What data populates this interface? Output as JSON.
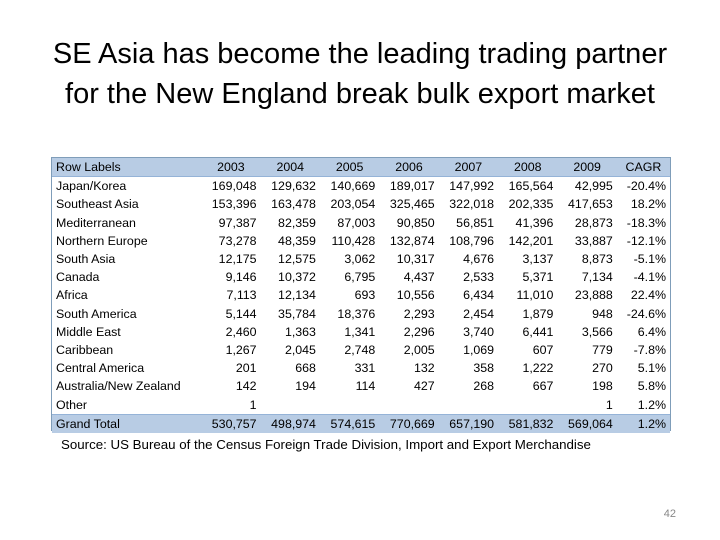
{
  "slide": {
    "title_line1": "SE Asia has become the leading trading partner",
    "title_line2": "for the New England break bulk export market",
    "source": "Source: US Bureau of the Census Foreign Trade Division, Import and Export Merchandise",
    "page_number": "42"
  },
  "table": {
    "headers": [
      "Row Labels",
      "2003",
      "2004",
      "2005",
      "2006",
      "2007",
      "2008",
      "2009",
      "CAGR"
    ],
    "rows": [
      [
        "Japan/Korea",
        "169,048",
        "129,632",
        "140,669",
        "189,017",
        "147,992",
        "165,564",
        "42,995",
        "-20.4%"
      ],
      [
        "Southeast Asia",
        "153,396",
        "163,478",
        "203,054",
        "325,465",
        "322,018",
        "202,335",
        "417,653",
        "18.2%"
      ],
      [
        "Mediterranean",
        "97,387",
        "82,359",
        "87,003",
        "90,850",
        "56,851",
        "41,396",
        "28,873",
        "-18.3%"
      ],
      [
        "Northern Europe",
        "73,278",
        "48,359",
        "110,428",
        "132,874",
        "108,796",
        "142,201",
        "33,887",
        "-12.1%"
      ],
      [
        "South Asia",
        "12,175",
        "12,575",
        "3,062",
        "10,317",
        "4,676",
        "3,137",
        "8,873",
        "-5.1%"
      ],
      [
        "Canada",
        "9,146",
        "10,372",
        "6,795",
        "4,437",
        "2,533",
        "5,371",
        "7,134",
        "-4.1%"
      ],
      [
        "Africa",
        "7,113",
        "12,134",
        "693",
        "10,556",
        "6,434",
        "11,010",
        "23,888",
        "22.4%"
      ],
      [
        "South America",
        "5,144",
        "35,784",
        "18,376",
        "2,293",
        "2,454",
        "1,879",
        "948",
        "-24.6%"
      ],
      [
        "Middle East",
        "2,460",
        "1,363",
        "1,341",
        "2,296",
        "3,740",
        "6,441",
        "3,566",
        "6.4%"
      ],
      [
        "Caribbean",
        "1,267",
        "2,045",
        "2,748",
        "2,005",
        "1,069",
        "607",
        "779",
        "-7.8%"
      ],
      [
        "Central America",
        "201",
        "668",
        "331",
        "132",
        "358",
        "1,222",
        "270",
        "5.1%"
      ],
      [
        "Australia/New Zealand",
        "142",
        "194",
        "114",
        "427",
        "268",
        "667",
        "198",
        "5.8%"
      ],
      [
        "Other",
        "1",
        "",
        "",
        "",
        "",
        "",
        "1",
        "1.2%"
      ]
    ],
    "total": [
      "Grand Total",
      "530,757",
      "498,974",
      "574,615",
      "770,669",
      "657,190",
      "581,832",
      "569,064",
      "1.2%"
    ]
  }
}
